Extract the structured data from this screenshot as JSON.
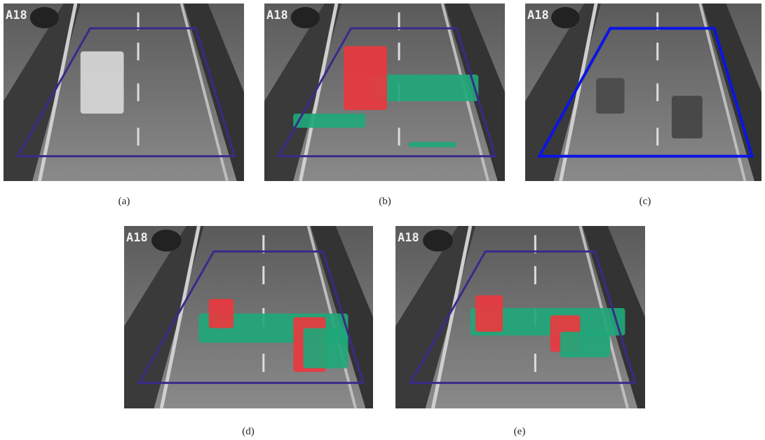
{
  "panels": [
    {
      "caption": "(a)",
      "overlay": "A18"
    },
    {
      "caption": "(b)",
      "overlay": "A18"
    },
    {
      "caption": "(c)",
      "overlay": "A18"
    },
    {
      "caption": "(d)",
      "overlay": "A18"
    },
    {
      "caption": "(e)",
      "overlay": "A18"
    }
  ]
}
